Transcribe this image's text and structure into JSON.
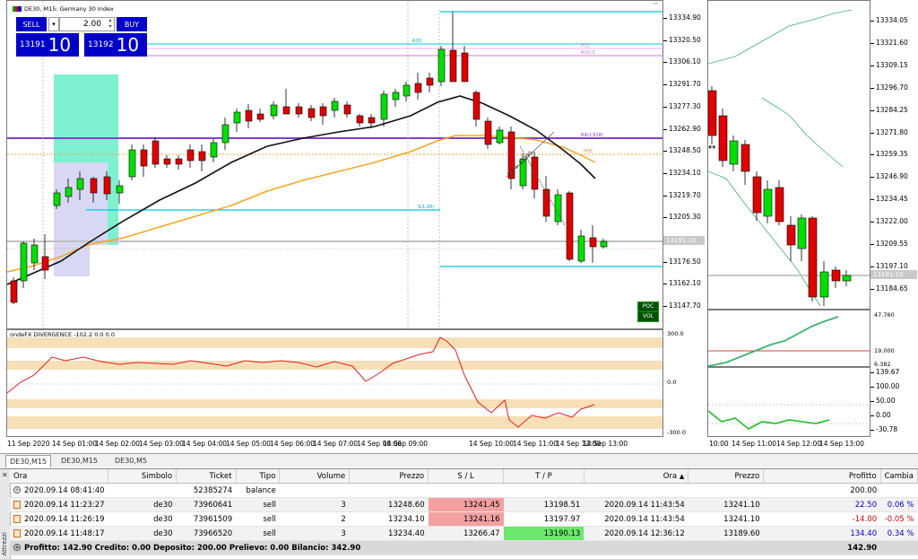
{
  "main_chart": {
    "title": "DE30, M15:  Germany 30 Index",
    "price_axis": [
      "13334.90",
      "13320.50",
      "13306.10",
      "13291.70",
      "13277.30",
      "13262.90",
      "13248.50",
      "13234.10",
      "13219.70",
      "13205.30",
      "13191.10",
      "13176.50",
      "13162.10",
      "13147.70"
    ],
    "line_labels": {
      "r4": "R4(1.618)",
      "r3": "R(3)",
      "r2": "R(2)",
      "r1": "R(1)-1",
      "poc": "POC",
      "s1": "S(1.00)",
      "hline1": "13190.10"
    },
    "trend_text": "1:1 > 13195",
    "poc_box": "POC",
    "vol_box": "VOL",
    "time_axis": [
      "11 Sep 2020",
      "14 Sep 01:00",
      "14 Sep 02:00",
      "14 Sep 03:00",
      "14 Sep 04:00",
      "14 Sep 05:00",
      "14 Sep 06:00",
      "14 Sep 07:00",
      "14 Sep 08:00",
      "14 Sep 09:00",
      "14 Sep 10:00",
      "14 Sep 11:00",
      "14 Sep 12:00",
      "14 Sep 13:00"
    ],
    "current_price_label": "13191.10"
  },
  "trade_widget": {
    "sell_label": "SELL",
    "buy_label": "BUY",
    "lot_value": "2.00",
    "bid_small": "13191",
    "bid_big": "10",
    "ask_small": "13192",
    "ask_big": "10"
  },
  "indicator": {
    "title": "ondeFX DIVERGENCE -102.2 0.0 0.0",
    "axis": [
      "300.0",
      "0.0",
      "-300.0"
    ]
  },
  "right_chart": {
    "price_axis": [
      "13334.05",
      "13321.60",
      "13309.15",
      "13296.70",
      "13284.25",
      "13271.80",
      "13259.35",
      "13246.90",
      "13234.45",
      "13222.00",
      "13209.55",
      "13197.10",
      "13184.65"
    ],
    "current_price_label": "13191.10",
    "osc1_axis": [
      "47.760",
      "19.000",
      "6.382"
    ],
    "osc2_axis": [
      "139.67",
      "100.00",
      "50.00",
      "0.00",
      "-30.78"
    ],
    "time_axis": [
      "10:00",
      "14 Sep 11:00",
      "14 Sep 12:00",
      "14 Sep 13:00"
    ]
  },
  "chart_tabs": [
    "DE30,M15",
    "DE30,M15",
    "DE30,M5"
  ],
  "terminal": {
    "side_label": "Attrezzi",
    "columns": {
      "ora": "Ora",
      "simbolo": "Simbolo",
      "ticket": "Ticket",
      "tipo": "Tipo",
      "volume": "Volume",
      "prezzo": "Prezzo",
      "sl": "S / L",
      "tp": "T / P",
      "ora2": "Ora",
      "prezzo2": "Prezzo",
      "profitto": "Profitto",
      "cambia": "Cambia"
    },
    "rows": [
      {
        "ora": "2020.09.14 08:41:40",
        "simbolo": "",
        "ticket": "52385274",
        "tipo": "balance",
        "volume": "",
        "prezzo": "",
        "sl": "",
        "tp": "",
        "ora2": "",
        "prezzo2": "",
        "profitto": "200.00",
        "cambia": ""
      },
      {
        "ora": "2020.09.14 11:23:27",
        "simbolo": "de30",
        "ticket": "73960641",
        "tipo": "sell",
        "volume": "3",
        "prezzo": "13248.60",
        "sl": "13241.45",
        "tp": "13198.51",
        "ora2": "2020.09.14 11:43:54",
        "prezzo2": "13241.10",
        "profitto": "22.50",
        "cambia": "0.06 %"
      },
      {
        "ora": "2020.09.14 11:26:19",
        "simbolo": "de30",
        "ticket": "73961509",
        "tipo": "sell",
        "volume": "2",
        "prezzo": "13234.10",
        "sl": "13241.16",
        "tp": "13197.97",
        "ora2": "2020.09.14 11:43:54",
        "prezzo2": "13241.10",
        "profitto": "-14.00",
        "cambia": "-0.05 %"
      },
      {
        "ora": "2020.09.14 11:48:17",
        "simbolo": "de30",
        "ticket": "73966520",
        "tipo": "sell",
        "volume": "3",
        "prezzo": "13234.40",
        "sl": "13266.47",
        "tp": "13190.13",
        "ora2": "2020.09.14 12:36:12",
        "prezzo2": "13189.60",
        "profitto": "134.40",
        "cambia": "0.34 %"
      }
    ],
    "summary": {
      "text": "Profitto: 142.90  Credito: 0.00  Deposito: 200.00  Prelievo: 0.00  Bilancio: 342.90",
      "total": "142.90"
    }
  }
}
